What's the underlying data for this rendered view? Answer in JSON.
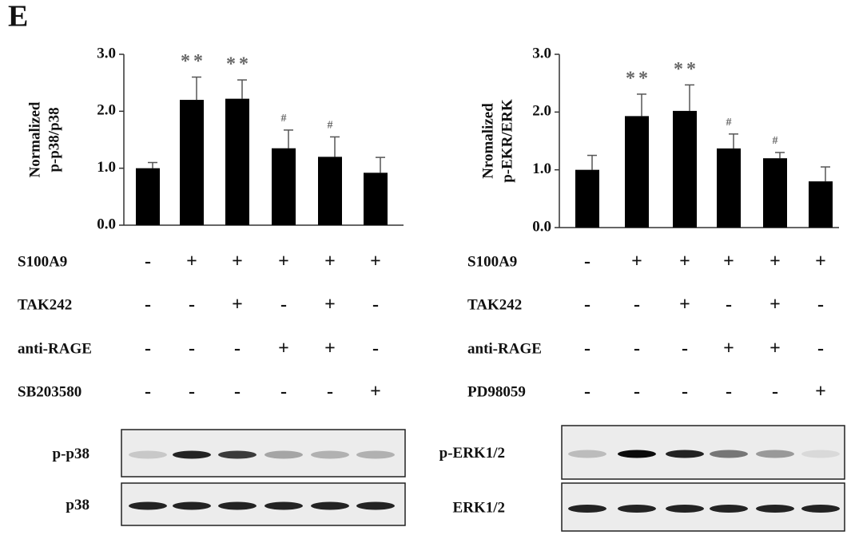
{
  "panel_label": "E",
  "chart_data": [
    {
      "type": "bar",
      "ylabel": [
        "Normalized",
        "p-p38/p38"
      ],
      "categories": [
        null,
        null,
        null,
        null,
        null,
        null
      ],
      "values": [
        1.0,
        2.2,
        2.22,
        1.35,
        1.2,
        0.92
      ],
      "errors": [
        0.1,
        0.4,
        0.33,
        0.32,
        0.35,
        0.27
      ],
      "value_annotations": [
        null,
        "**",
        "**",
        "#",
        "#",
        null
      ],
      "color": "#000000",
      "ylim": [
        0,
        3
      ],
      "yticks": [
        {
          "value": 0,
          "label": "0.0"
        },
        {
          "value": 1,
          "label": "1.0"
        },
        {
          "value": 2,
          "label": "2.0"
        },
        {
          "value": 3,
          "label": "3.0"
        }
      ],
      "treatments": [
        {
          "name": "S100A9",
          "signs": [
            "-",
            "+",
            "+",
            "+",
            "+",
            "+"
          ]
        },
        {
          "name": "TAK242",
          "signs": [
            "-",
            "-",
            "+",
            "-",
            "+",
            "-"
          ]
        },
        {
          "name": "anti-RAGE",
          "signs": [
            "-",
            "-",
            "-",
            "+",
            "+",
            "-"
          ]
        },
        {
          "name": "SB203580",
          "signs": [
            "-",
            "-",
            "-",
            "-",
            "-",
            "+"
          ]
        }
      ],
      "blots": [
        "p-p38",
        "p38"
      ]
    },
    {
      "type": "bar",
      "ylabel": [
        "Nromalized",
        "p-EKR/ERK"
      ],
      "categories": [
        null,
        null,
        null,
        null,
        null,
        null
      ],
      "values": [
        1.0,
        1.93,
        2.02,
        1.37,
        1.2,
        0.8
      ],
      "errors": [
        0.25,
        0.38,
        0.45,
        0.25,
        0.1,
        0.25
      ],
      "value_annotations": [
        null,
        "**",
        "**",
        "#",
        "#",
        null
      ],
      "color": "#000000",
      "ylim": [
        0,
        3
      ],
      "yticks": [
        {
          "value": 0,
          "label": "0.0"
        },
        {
          "value": 1,
          "label": "1.0"
        },
        {
          "value": 2,
          "label": "2.0"
        },
        {
          "value": 3,
          "label": "3.0"
        }
      ],
      "treatments": [
        {
          "name": "S100A9",
          "signs": [
            "-",
            "+",
            "+",
            "+",
            "+",
            "+"
          ]
        },
        {
          "name": "TAK242",
          "signs": [
            "-",
            "-",
            "+",
            "-",
            "+",
            "-"
          ]
        },
        {
          "name": "anti-RAGE",
          "signs": [
            "-",
            "-",
            "-",
            "+",
            "+",
            "-"
          ]
        },
        {
          "name": "PD98059",
          "signs": [
            "-",
            "-",
            "-",
            "-",
            "-",
            "+"
          ]
        }
      ],
      "blots": [
        "p-ERK1/2",
        "ERK1/2"
      ]
    }
  ]
}
